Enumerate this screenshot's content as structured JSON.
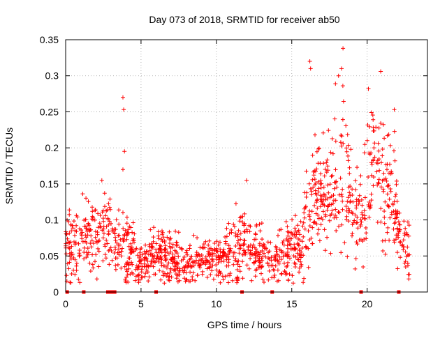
{
  "chart_data": {
    "type": "scatter",
    "title": "Day 073 of 2018, SRMTID for receiver ab50",
    "xlabel": "GPS time / hours",
    "ylabel": "SRMTID / TECUs",
    "xlim": [
      0,
      24
    ],
    "ylim": [
      0,
      0.35
    ],
    "xticks": [
      0,
      5,
      10,
      15,
      20
    ],
    "xtick_labels": [
      "0",
      "5",
      "10",
      "15",
      "20"
    ],
    "yticks": [
      0,
      0.05,
      0.1,
      0.15,
      0.2,
      0.25,
      0.3,
      0.35
    ],
    "ytick_labels": [
      "0",
      "0.05",
      "0.1",
      "0.15",
      "0.2",
      "0.25",
      "0.3",
      "0.35"
    ],
    "grid": true,
    "marker": "+",
    "series_color": "#ff0000",
    "zero_markers_x": [
      0.1,
      1.2,
      2.8,
      2.95,
      3.1,
      3.25,
      6.0,
      11.7,
      13.7,
      19.6,
      22.1
    ],
    "envelope": [
      [
        0,
        0.06,
        0.03
      ],
      [
        0.5,
        0.065,
        0.025
      ],
      [
        1,
        0.055,
        0.025
      ],
      [
        1.3,
        0.09,
        0.03
      ],
      [
        1.8,
        0.07,
        0.025
      ],
      [
        2.2,
        0.08,
        0.03
      ],
      [
        2.6,
        0.1,
        0.03
      ],
      [
        3,
        0.08,
        0.025
      ],
      [
        3.5,
        0.06,
        0.02
      ],
      [
        4,
        0.065,
        0.025
      ],
      [
        4.5,
        0.05,
        0.02
      ],
      [
        5,
        0.035,
        0.015
      ],
      [
        5.5,
        0.045,
        0.015
      ],
      [
        6,
        0.06,
        0.02
      ],
      [
        6.5,
        0.05,
        0.02
      ],
      [
        7,
        0.045,
        0.02
      ],
      [
        8,
        0.04,
        0.015
      ],
      [
        9,
        0.045,
        0.015
      ],
      [
        10,
        0.045,
        0.015
      ],
      [
        11,
        0.055,
        0.02
      ],
      [
        11.7,
        0.07,
        0.025
      ],
      [
        12.5,
        0.055,
        0.02
      ],
      [
        13.5,
        0.045,
        0.02
      ],
      [
        14,
        0.05,
        0.02
      ],
      [
        15,
        0.055,
        0.02
      ],
      [
        15.6,
        0.06,
        0.02
      ],
      [
        16,
        0.1,
        0.04
      ],
      [
        16.5,
        0.13,
        0.04
      ],
      [
        17,
        0.15,
        0.04
      ],
      [
        17.5,
        0.13,
        0.04
      ],
      [
        18,
        0.18,
        0.05
      ],
      [
        18.5,
        0.16,
        0.05
      ],
      [
        19,
        0.13,
        0.04
      ],
      [
        19.5,
        0.1,
        0.03
      ],
      [
        20,
        0.15,
        0.05
      ],
      [
        20.5,
        0.17,
        0.05
      ],
      [
        21,
        0.15,
        0.05
      ],
      [
        21.5,
        0.13,
        0.04
      ],
      [
        22,
        0.11,
        0.04
      ],
      [
        22.4,
        0.07,
        0.02
      ],
      [
        22.8,
        0.06,
        0.02
      ]
    ],
    "outliers": [
      [
        3.8,
        0.27
      ],
      [
        3.85,
        0.253
      ],
      [
        3.9,
        0.195
      ],
      [
        3.8,
        0.17
      ],
      [
        2.4,
        0.155
      ],
      [
        12.0,
        0.155
      ],
      [
        16.2,
        0.32
      ],
      [
        16.25,
        0.31
      ],
      [
        18.4,
        0.338
      ],
      [
        18.3,
        0.31
      ],
      [
        20.9,
        0.306
      ],
      [
        18.1,
        0.3
      ],
      [
        17.9,
        0.289
      ],
      [
        19.2,
        0.032
      ],
      [
        21.8,
        0.253
      ],
      [
        16.5,
        0.12
      ],
      [
        22.5,
        0.04
      ]
    ]
  }
}
